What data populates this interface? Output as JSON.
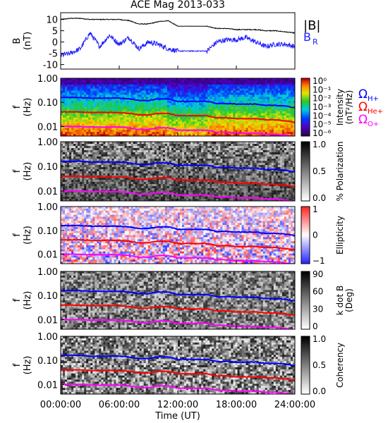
{
  "title": "ACE Mag 2013-033",
  "x_axis": {
    "label": "Time (UT)",
    "ticks": [
      "00:00:00",
      "06:00:00",
      "12:00:00",
      "18:00:00",
      "24:00:00"
    ],
    "range_hours": [
      0,
      24
    ]
  },
  "legend": {
    "bmag": "|B|",
    "br": "B",
    "br_sub": "R",
    "omega": "Ω",
    "h_sub": "H+",
    "he_sub": "He+",
    "o_sub": "O+"
  },
  "colors": {
    "bmag": "#000000",
    "br": "#2020ff",
    "h_line": "#0000ff",
    "he_line": "#ff0000",
    "o_line": "#ff00ff",
    "axis": "#000000"
  },
  "chart_data": [
    {
      "type": "line",
      "name": "field",
      "ylabel": "B",
      "yunit": "(nT)",
      "ylim": [
        -12,
        13
      ],
      "yticks": [
        "10",
        "5",
        "0",
        "-5",
        "-10"
      ],
      "series": [
        {
          "name": "|B|",
          "x": [
            0,
            1,
            2,
            3,
            4,
            5,
            6,
            7,
            8,
            9,
            10,
            11,
            12,
            13,
            14,
            15,
            16,
            17,
            18,
            19,
            20,
            21,
            22,
            23,
            24
          ],
          "values": [
            10,
            10.5,
            10.5,
            10,
            10,
            10,
            10,
            9.5,
            8,
            8,
            9,
            9.5,
            7,
            7,
            7,
            7,
            6,
            6,
            5.5,
            5.5,
            5.5,
            5,
            5,
            4.5,
            4
          ]
        },
        {
          "name": "B_R",
          "x": [
            0,
            1,
            2,
            3,
            4,
            5,
            6,
            7,
            8,
            9,
            10,
            11,
            12,
            13,
            14,
            15,
            16,
            17,
            18,
            19,
            20,
            21,
            22,
            23,
            24
          ],
          "values": [
            -6,
            -5,
            -3,
            4,
            -2,
            3,
            -1,
            2,
            -3,
            0,
            -1,
            -3,
            -4,
            -4,
            -4,
            -4,
            0,
            1,
            1,
            2,
            0,
            -2,
            -1,
            -1,
            -2
          ]
        }
      ]
    },
    {
      "type": "heatmap",
      "name": "intensity",
      "ylabel": "f",
      "yunit": "(Hz)",
      "yscale": "log",
      "ylim": [
        0.004,
        1.0
      ],
      "yticks": [
        "1.00",
        "0.10",
        "0.01"
      ],
      "colorbar_label": "Intensity",
      "colorbar_unit": "(nT²/Hz)",
      "colorbar_ticks": [
        "10⁰",
        "10⁻¹",
        "10⁻²",
        "10⁻³",
        "10⁻⁴",
        "10⁻⁵",
        "10⁻⁶"
      ],
      "colorbar_range": [
        -6,
        0
      ]
    },
    {
      "type": "heatmap",
      "name": "polarization",
      "ylabel": "f",
      "yunit": "(Hz)",
      "yscale": "log",
      "ylim": [
        0.004,
        1.0
      ],
      "yticks": [
        "1.00",
        "0.10",
        "0.01"
      ],
      "colorbar_label": "% Polarization",
      "colorbar_ticks": [
        "1.0",
        "0.5",
        "0.0"
      ],
      "colorbar_range": [
        0,
        1
      ]
    },
    {
      "type": "heatmap",
      "name": "ellipticity",
      "ylabel": "f",
      "yunit": "(Hz)",
      "yscale": "log",
      "ylim": [
        0.004,
        1.0
      ],
      "yticks": [
        "1.00",
        "0.10",
        "0.01"
      ],
      "colorbar_label": "Ellipticity",
      "colorbar_ticks": [
        "1",
        "0",
        "−1"
      ],
      "colorbar_range": [
        -1,
        1
      ]
    },
    {
      "type": "heatmap",
      "name": "kdotb",
      "ylabel": "f",
      "yunit": "(Hz)",
      "yscale": "log",
      "ylim": [
        0.004,
        1.0
      ],
      "yticks": [
        "1.00",
        "0.10",
        "0.01"
      ],
      "colorbar_label": "k dot B",
      "colorbar_unit": "(Deg)",
      "colorbar_ticks": [
        "90",
        "60",
        "30",
        "0"
      ],
      "colorbar_range": [
        0,
        90
      ]
    },
    {
      "type": "heatmap",
      "name": "coherency",
      "ylabel": "f",
      "yunit": "(Hz)",
      "yscale": "log",
      "ylim": [
        0.004,
        1.0
      ],
      "yticks": [
        "1.00",
        "0.10",
        "0.01"
      ],
      "colorbar_label": "Coherency",
      "colorbar_ticks": [
        "1.0",
        "0.5",
        "0.0"
      ],
      "colorbar_range": [
        0,
        1
      ]
    }
  ],
  "gyrofrequency_lines": {
    "x": [
      0,
      1,
      2,
      3,
      4,
      5,
      6,
      7,
      8,
      9,
      10,
      11,
      12,
      13,
      14,
      15,
      16,
      17,
      18,
      19,
      20,
      21,
      22,
      23,
      24
    ],
    "H+": [
      0.16,
      0.16,
      0.16,
      0.15,
      0.15,
      0.15,
      0.15,
      0.14,
      0.12,
      0.12,
      0.14,
      0.14,
      0.11,
      0.11,
      0.11,
      0.11,
      0.09,
      0.09,
      0.085,
      0.085,
      0.085,
      0.075,
      0.075,
      0.07,
      0.06
    ],
    "He+": [
      0.04,
      0.04,
      0.04,
      0.038,
      0.038,
      0.038,
      0.038,
      0.035,
      0.03,
      0.03,
      0.035,
      0.035,
      0.028,
      0.028,
      0.028,
      0.028,
      0.023,
      0.023,
      0.021,
      0.021,
      0.021,
      0.019,
      0.019,
      0.017,
      0.015
    ],
    "O+": [
      0.01,
      0.01,
      0.01,
      0.0095,
      0.0095,
      0.0095,
      0.0095,
      0.0088,
      0.0075,
      0.0075,
      0.0088,
      0.0088,
      0.007,
      0.007,
      0.007,
      0.007,
      0.0058,
      0.0058,
      0.0053,
      0.0053,
      0.0053,
      0.0048,
      0.0048,
      0.0043,
      0.0038
    ]
  }
}
